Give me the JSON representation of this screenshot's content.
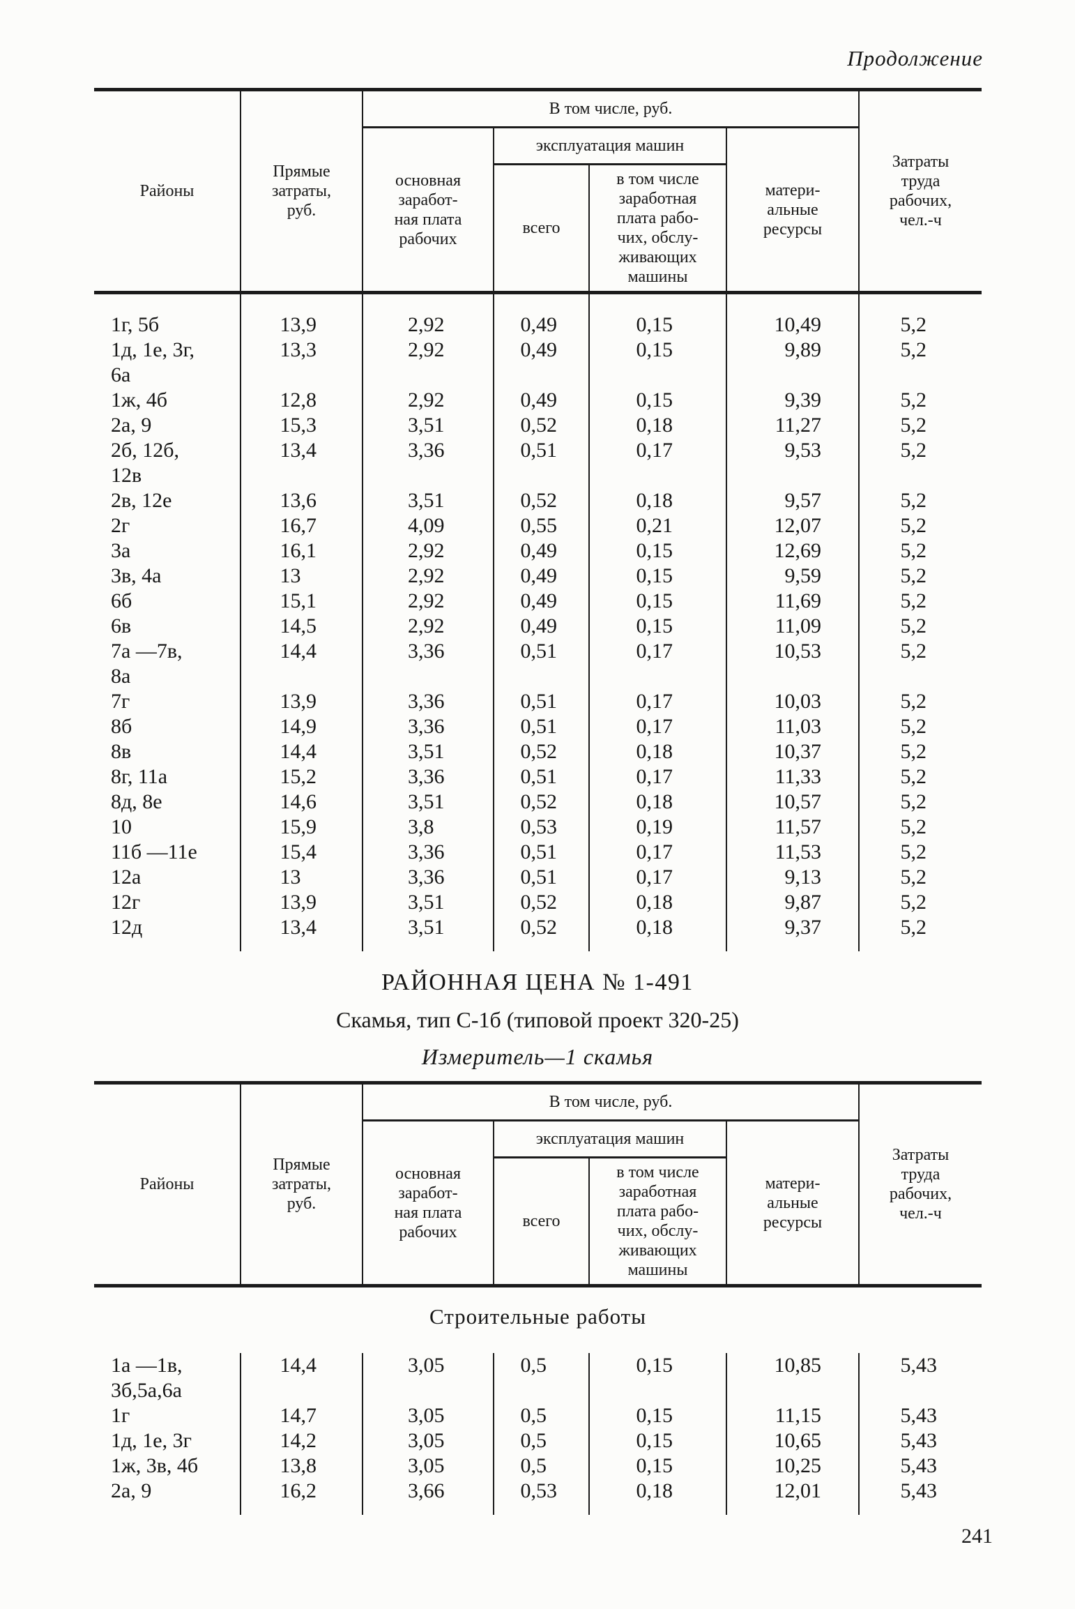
{
  "page": {
    "continuation": "Продолжение",
    "page_number": "241"
  },
  "section": {
    "title": "РАЙОННАЯ ЦЕНА № 1-491",
    "subtitle": "Скамья, тип С-1б (типовой проект 320-25)",
    "measure": "Измеритель—1 скамья"
  },
  "table_header": {
    "districts": "Районы",
    "direct_costs": "Прямые\nзатраты,\nруб.",
    "including_rub": "В том числе, руб.",
    "basic_wages": "основная\nзаработ-\nная плата\nрабочих",
    "machines_operation": "эксплуатация машин",
    "total": "всего",
    "machines_wages": "в том числе\nзаработная\nплата рабо-\nчих, обслу-\nживающих\nмашины",
    "material_resources": "матери-\nальные\nресурсы",
    "labor_costs": "Затраты\nтруда\nрабочих,\nчел.-ч"
  },
  "table1": {
    "rows": [
      [
        "1г, 5б",
        "13,9",
        "2,92",
        "0,49",
        "0,15",
        "10,49",
        "5,2"
      ],
      [
        "1д, 1е, 3г,\n6а",
        "13,3",
        "2,92",
        "0,49",
        "0,15",
        "9,89",
        "5,2"
      ],
      [
        "1ж, 4б",
        "12,8",
        "2,92",
        "0,49",
        "0,15",
        "9,39",
        "5,2"
      ],
      [
        "2а, 9",
        "15,3",
        "3,51",
        "0,52",
        "0,18",
        "11,27",
        "5,2"
      ],
      [
        "2б, 12б,\n12в",
        "13,4",
        "3,36",
        "0,51",
        "0,17",
        "9,53",
        "5,2"
      ],
      [
        "2в, 12е",
        "13,6",
        "3,51",
        "0,52",
        "0,18",
        "9,57",
        "5,2"
      ],
      [
        "2г",
        "16,7",
        "4,09",
        "0,55",
        "0,21",
        "12,07",
        "5,2"
      ],
      [
        "3а",
        "16,1",
        "2,92",
        "0,49",
        "0,15",
        "12,69",
        "5,2"
      ],
      [
        "3в, 4а",
        "13",
        "2,92",
        "0,49",
        "0,15",
        "9,59",
        "5,2"
      ],
      [
        "6б",
        "15,1",
        "2,92",
        "0,49",
        "0,15",
        "11,69",
        "5,2"
      ],
      [
        "6в",
        "14,5",
        "2,92",
        "0,49",
        "0,15",
        "11,09",
        "5,2"
      ],
      [
        "7а —7в,\n8а",
        "14,4",
        "3,36",
        "0,51",
        "0,17",
        "10,53",
        "5,2"
      ],
      [
        "7г",
        "13,9",
        "3,36",
        "0,51",
        "0,17",
        "10,03",
        "5,2"
      ],
      [
        "8б",
        "14,9",
        "3,36",
        "0,51",
        "0,17",
        "11,03",
        "5,2"
      ],
      [
        "8в",
        "14,4",
        "3,51",
        "0,52",
        "0,18",
        "10,37",
        "5,2"
      ],
      [
        "8г, 11а",
        "15,2",
        "3,36",
        "0,51",
        "0,17",
        "11,33",
        "5,2"
      ],
      [
        "8д, 8е",
        "14,6",
        "3,51",
        "0,52",
        "0,18",
        "10,57",
        "5,2"
      ],
      [
        "10",
        "15,9",
        "3,8",
        "0,53",
        "0,19",
        "11,57",
        "5,2"
      ],
      [
        "11б —11е",
        "15,4",
        "3,36",
        "0,51",
        "0,17",
        "11,53",
        "5,2"
      ],
      [
        "12а",
        "13",
        "3,36",
        "0,51",
        "0,17",
        "9,13",
        "5,2"
      ],
      [
        "12г",
        "13,9",
        "3,51",
        "0,52",
        "0,18",
        "9,87",
        "5,2"
      ],
      [
        "12д",
        "13,4",
        "3,51",
        "0,52",
        "0,18",
        "9,37",
        "5,2"
      ]
    ]
  },
  "table2": {
    "section_heading": "Строительные работы",
    "rows": [
      [
        "1а —1в,\n3б,5а,6а",
        "14,4",
        "3,05",
        "0,5",
        "0,15",
        "10,85",
        "5,43"
      ],
      [
        "1г",
        "14,7",
        "3,05",
        "0,5",
        "0,15",
        "11,15",
        "5,43"
      ],
      [
        "1д, 1е, 3г",
        "14,2",
        "3,05",
        "0,5",
        "0,15",
        "10,65",
        "5,43"
      ],
      [
        "1ж, 3в, 4б",
        "13,8",
        "3,05",
        "0,5",
        "0,15",
        "10,25",
        "5,43"
      ],
      [
        "2а, 9",
        "16,2",
        "3,66",
        "0,53",
        "0,18",
        "12,01",
        "5,43"
      ]
    ]
  }
}
